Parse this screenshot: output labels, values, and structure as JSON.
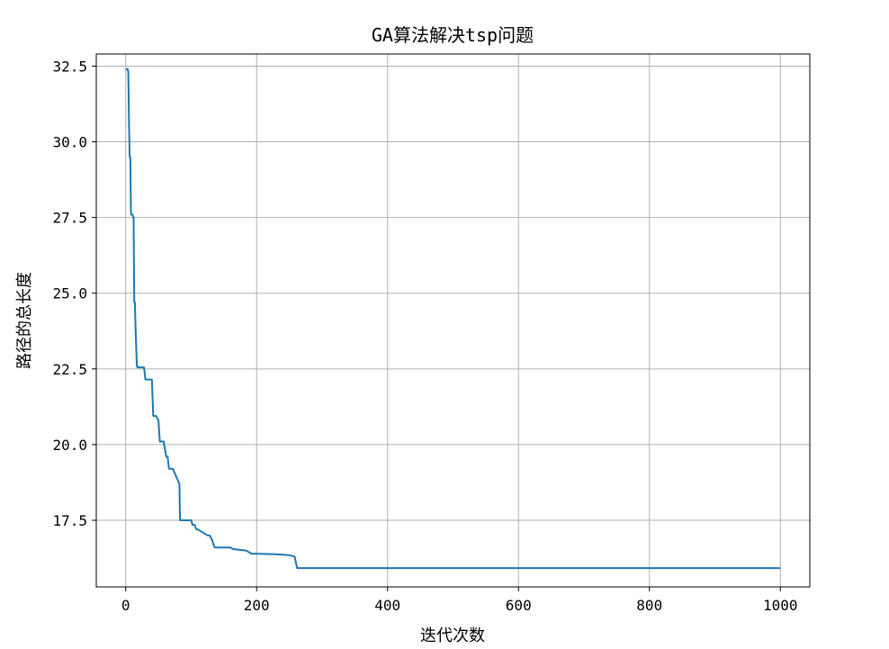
{
  "chart_data": {
    "type": "line",
    "title": "GA算法解决tsp问题",
    "xlabel": "迭代次数",
    "ylabel": "路径的总长度",
    "xlim": [
      -45,
      1045
    ],
    "ylim": [
      15.3,
      32.9
    ],
    "xticks": [
      0,
      200,
      400,
      600,
      800,
      1000
    ],
    "xtick_labels": [
      "0",
      "200",
      "400",
      "600",
      "800",
      "1000"
    ],
    "yticks": [
      17.5,
      20.0,
      22.5,
      25.0,
      27.5,
      30.0,
      32.5
    ],
    "ytick_labels": [
      "17.5",
      "20.0",
      "22.5",
      "25.0",
      "27.5",
      "30.0",
      "32.5"
    ],
    "grid": true,
    "line_color": "#1f77b4",
    "series": [
      {
        "x": [
          0,
          3,
          4,
          5,
          6,
          7,
          8,
          10,
          12,
          13,
          14,
          15,
          16,
          17,
          18,
          20,
          28,
          30,
          40,
          42,
          46,
          50,
          52,
          58,
          62,
          64,
          66,
          68,
          72,
          82,
          83,
          85,
          100,
          102,
          105,
          108,
          110,
          125,
          128,
          132,
          134,
          136,
          138,
          160,
          164,
          184,
          192,
          230,
          250,
          258,
          262,
          1000
        ],
        "y": [
          32.4,
          32.4,
          32.3,
          30.6,
          29.5,
          29.5,
          27.6,
          27.6,
          27.5,
          24.7,
          24.7,
          23.8,
          23.2,
          22.6,
          22.55,
          22.55,
          22.55,
          22.15,
          22.15,
          20.95,
          20.95,
          20.8,
          20.1,
          20.1,
          19.6,
          19.6,
          19.2,
          19.2,
          19.2,
          18.7,
          17.5,
          17.5,
          17.5,
          17.35,
          17.35,
          17.2,
          17.2,
          17.0,
          17.0,
          16.85,
          16.7,
          16.6,
          16.6,
          16.6,
          16.55,
          16.5,
          16.4,
          16.38,
          16.35,
          16.3,
          15.92,
          15.92
        ]
      }
    ]
  }
}
